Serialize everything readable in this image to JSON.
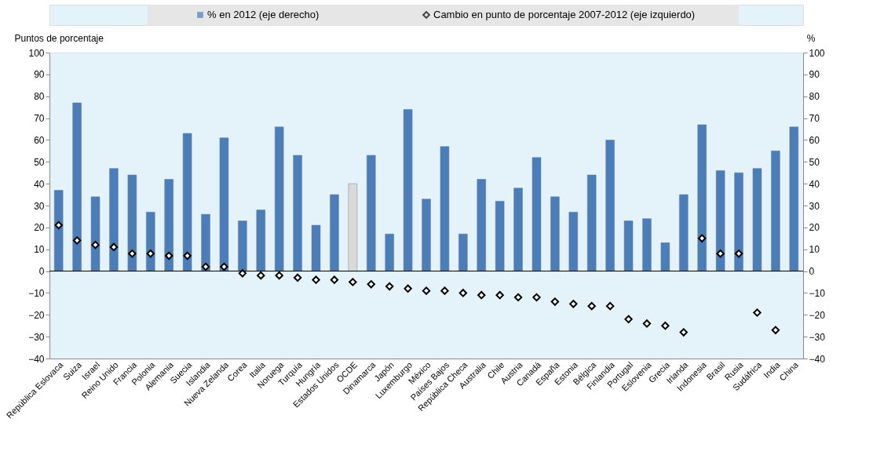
{
  "chart_data": {
    "type": "bar",
    "categories": [
      "República Eslovaca",
      "Suiza",
      "Israel",
      "Reino Unido",
      "Francia",
      "Polonia",
      "Alemania",
      "Suecia",
      "Islandia",
      "Nueva Zelanda",
      "Corea",
      "Italia",
      "Noruega",
      "Turquía",
      "Hungría",
      "Estados Unidos",
      "OCDE",
      "Dinamarca",
      "Japón",
      "Luxemburgo",
      "México",
      "Países Bajos",
      "República Checa",
      "Australia",
      "Chile",
      "Austria",
      "Canadá",
      "España",
      "Estonia",
      "Bélgica",
      "Finlandia",
      "Portugal",
      "Eslovenia",
      "Grecia",
      "Irlanda",
      null,
      "Indonesia",
      "Brasil",
      "Rusia",
      "Sudáfrica",
      "India",
      "China"
    ],
    "series": [
      {
        "name": "% en 2012 (eje derecho)",
        "axis": "y2",
        "color": "#4a7ebb",
        "colors": [
          "#4a7ebb",
          "#4a7ebb",
          "#4a7ebb",
          "#4a7ebb",
          "#4a7ebb",
          "#4a7ebb",
          "#4a7ebb",
          "#4a7ebb",
          "#4a7ebb",
          "#4a7ebb",
          "#4a7ebb",
          "#4a7ebb",
          "#4a7ebb",
          "#4a7ebb",
          "#4a7ebb",
          "#4a7ebb",
          "#d9d9d9",
          "#4a7ebb",
          "#4a7ebb",
          "#4a7ebb",
          "#4a7ebb",
          "#4a7ebb",
          "#4a7ebb",
          "#4a7ebb",
          "#4a7ebb",
          "#4a7ebb",
          "#4a7ebb",
          "#4a7ebb",
          "#4a7ebb",
          "#4a7ebb",
          "#4a7ebb",
          "#4a7ebb",
          "#4a7ebb",
          "#4a7ebb",
          "#4a7ebb",
          "#4a7ebb",
          "#4a7ebb",
          "#4a7ebb",
          "#4a7ebb",
          "#4a7ebb",
          "#4a7ebb",
          "#4a7ebb"
        ],
        "values": [
          37,
          77,
          34,
          47,
          44,
          27,
          42,
          63,
          26,
          61,
          23,
          28,
          66,
          53,
          21,
          35,
          40,
          53,
          17,
          74,
          33,
          57,
          17,
          42,
          32,
          38,
          52,
          34,
          27,
          44,
          60,
          23,
          24,
          13,
          35,
          null,
          67,
          46,
          45,
          47,
          55,
          66
        ]
      },
      {
        "name": "Cambio en punto de porcentaje 2007-2012 (eje izquierdo)",
        "type": "scatter",
        "marker": "diamond",
        "color": "#000000",
        "values": [
          21,
          14,
          12,
          11,
          8,
          8,
          7,
          7,
          2,
          2,
          -1,
          -2,
          -2,
          -3,
          -4,
          -4,
          -5,
          -6,
          -7,
          -8,
          -9,
          -9,
          -10,
          -11,
          -11,
          -12,
          -12,
          -14,
          -15,
          -16,
          -16,
          -22,
          -24,
          -25,
          -28,
          null,
          15,
          8,
          8,
          -19,
          -27,
          null
        ]
      }
    ],
    "ylabel": "Puntos de porcentaje",
    "y2label": "%",
    "ylim": [
      -40,
      100
    ],
    "yticks": [
      -40,
      -30,
      -20,
      -10,
      0,
      10,
      20,
      30,
      40,
      50,
      60,
      70,
      80,
      90,
      100
    ],
    "y2lim": [
      -40,
      100
    ],
    "y2ticks": [
      -40,
      -30,
      -20,
      -10,
      0,
      10,
      20,
      30,
      40,
      50,
      60,
      70,
      80,
      90,
      100
    ],
    "ref_lines": [
      {
        "axis": "y",
        "value": 0,
        "color": "#000000"
      }
    ],
    "grid": false,
    "legend": "top"
  }
}
